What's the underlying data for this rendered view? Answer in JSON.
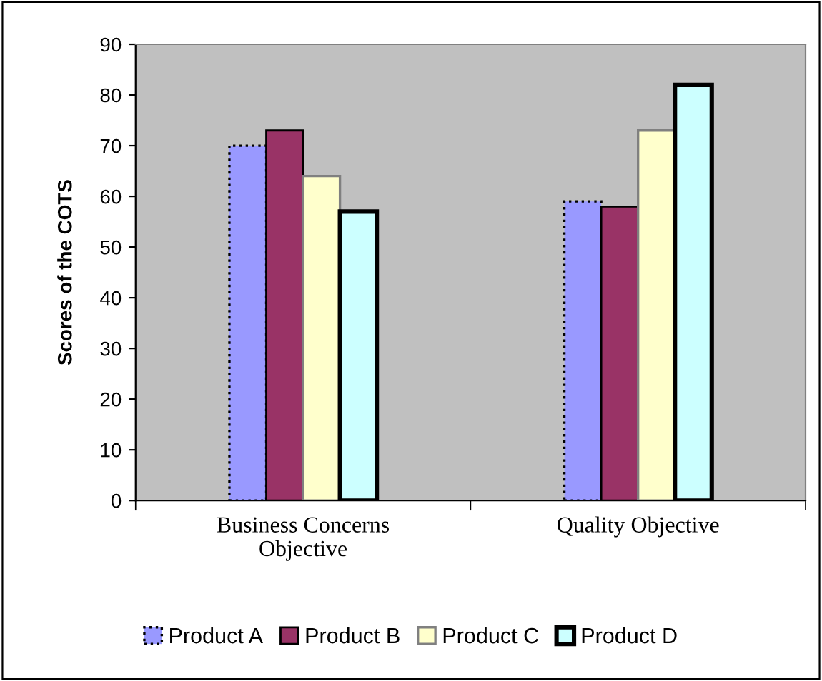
{
  "chart_data": {
    "type": "bar",
    "ylabel": "Scores of the COTS",
    "categories": [
      "Business Concerns\nObjective",
      "Quality Objective"
    ],
    "series": [
      {
        "name": "Product A",
        "color": "#9999ff",
        "values": [
          70,
          59
        ]
      },
      {
        "name": "Product B",
        "color": "#993366",
        "values": [
          73,
          58
        ]
      },
      {
        "name": "Product C",
        "color": "#ffffcc",
        "values": [
          64,
          73
        ]
      },
      {
        "name": "Product D",
        "color": "#ccffff",
        "values": [
          57,
          82
        ]
      }
    ],
    "ylim": [
      0,
      90
    ],
    "yticks": [
      0,
      10,
      20,
      30,
      40,
      50,
      60,
      70,
      80,
      90
    ],
    "grid": false,
    "legend": "bottom"
  }
}
